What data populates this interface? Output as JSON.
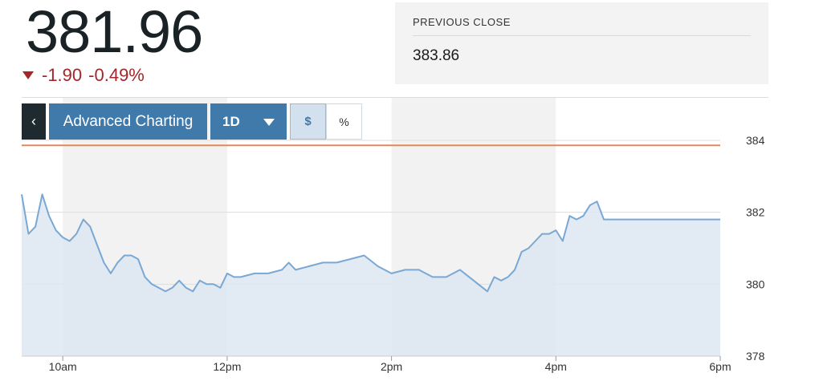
{
  "quote": {
    "price": "381.96",
    "change": "-1.90",
    "change_pct": "-0.49%"
  },
  "previous_close": {
    "label": "PREVIOUS CLOSE",
    "value": "383.86"
  },
  "toolbar": {
    "back_icon": "chevron-left-icon",
    "advanced_label": "Advanced Charting",
    "range_label": "1D",
    "unit_dollar": "$",
    "unit_percent": "%"
  },
  "colors": {
    "price_text": "#1a2226",
    "negative": "#a3262a",
    "button_blue": "#3f7aab",
    "line": "#7aa8d4",
    "area_fill": "#dde8f2",
    "previous_close_line": "#e08a5b"
  },
  "chart_data": {
    "type": "area",
    "ylim": [
      378,
      384
    ],
    "y_ticks": [
      "384",
      "382",
      "380",
      "378"
    ],
    "x_ticks": [
      "10am",
      "12pm",
      "2pm",
      "4pm",
      "6pm"
    ],
    "previous_close_line": 383.86,
    "series": [
      {
        "x": [
          "9:30",
          "9:35",
          "9:40",
          "9:45",
          "9:50",
          "9:55",
          "10:00",
          "10:05",
          "10:10",
          "10:15",
          "10:20",
          "10:25",
          "10:30",
          "10:35",
          "10:40",
          "10:45",
          "10:50",
          "10:55",
          "11:00",
          "11:05",
          "11:10",
          "11:15",
          "11:20",
          "11:25",
          "11:30",
          "11:35",
          "11:40",
          "11:45",
          "11:50",
          "11:55",
          "12:00",
          "12:05",
          "12:10",
          "12:20",
          "12:30",
          "12:40",
          "12:45",
          "12:50",
          "13:00",
          "13:10",
          "13:20",
          "13:30",
          "13:40",
          "13:50",
          "14:00",
          "14:10",
          "14:20",
          "14:25",
          "14:30",
          "14:40",
          "14:50",
          "15:00",
          "15:10",
          "15:15",
          "15:20",
          "15:25",
          "15:30",
          "15:35",
          "15:40",
          "15:45",
          "15:50",
          "15:55",
          "16:00",
          "16:05",
          "16:10",
          "16:15",
          "16:20",
          "16:25",
          "16:30",
          "16:35",
          "16:40",
          "16:45",
          "16:50",
          "16:55",
          "17:00",
          "17:05",
          "17:10",
          "17:15",
          "17:20",
          "17:25",
          "17:30",
          "17:40",
          "17:50",
          "18:00"
        ],
        "values": [
          382.5,
          381.4,
          381.6,
          382.5,
          381.9,
          381.5,
          381.3,
          381.2,
          381.4,
          381.8,
          381.6,
          381.1,
          380.6,
          380.3,
          380.6,
          380.8,
          380.8,
          380.7,
          380.2,
          380.0,
          379.9,
          379.8,
          379.9,
          380.1,
          379.9,
          379.8,
          380.1,
          380.0,
          380.0,
          379.9,
          380.3,
          380.2,
          380.2,
          380.3,
          380.3,
          380.4,
          380.6,
          380.4,
          380.5,
          380.6,
          380.6,
          380.7,
          380.8,
          380.5,
          380.3,
          380.4,
          380.4,
          380.3,
          380.2,
          380.2,
          380.4,
          380.1,
          379.8,
          380.2,
          380.1,
          380.2,
          380.4,
          380.9,
          381.0,
          381.2,
          381.4,
          381.4,
          381.5,
          381.2,
          381.9,
          381.8,
          381.9,
          382.2,
          382.3,
          381.8,
          381.8,
          381.8,
          381.8,
          381.8,
          381.8,
          381.8,
          381.8,
          381.8,
          381.8,
          381.8,
          381.8,
          381.8,
          381.8,
          381.8
        ]
      }
    ],
    "grid": true
  }
}
